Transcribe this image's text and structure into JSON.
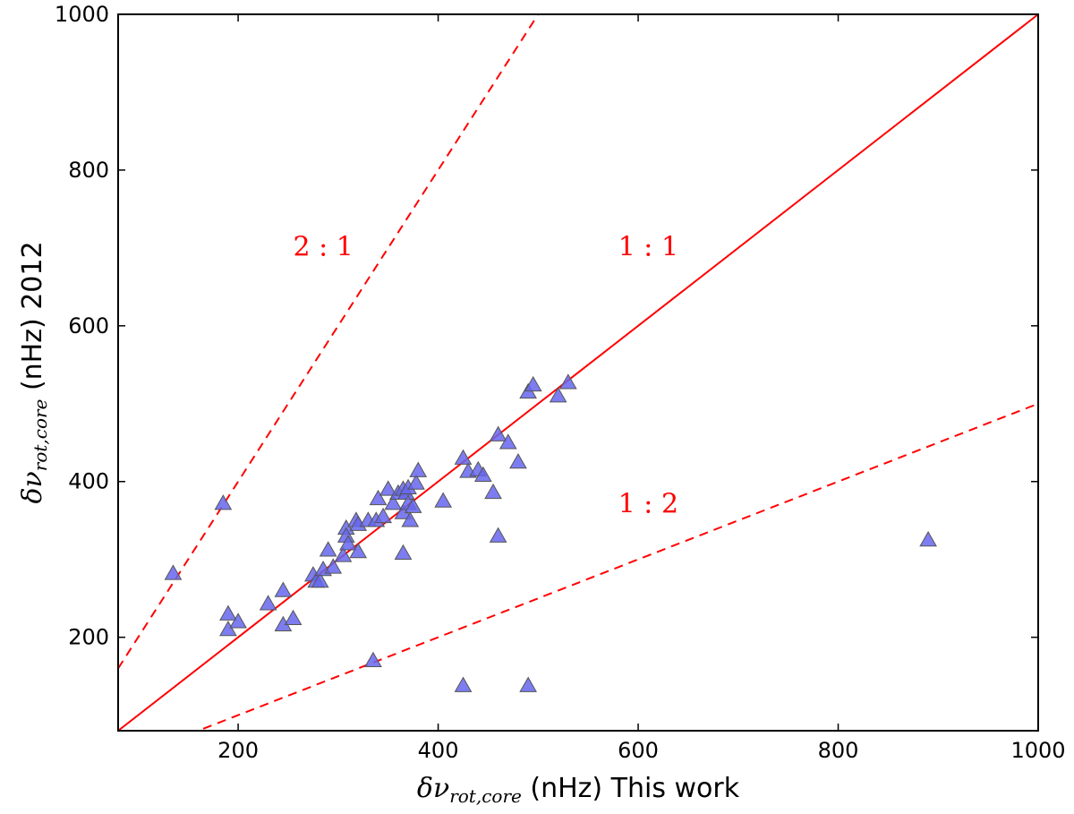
{
  "chart_data": {
    "type": "scatter",
    "xlabel": {
      "symbol": "δν",
      "subscript": "rot,core",
      "text": " (nHz) This work"
    },
    "ylabel": {
      "symbol": "δν",
      "subscript": "rot,core",
      "text": " (nHz) 2012"
    },
    "xlim": [
      80,
      1000
    ],
    "ylim": [
      80,
      1000
    ],
    "xticks": [
      200,
      400,
      600,
      800,
      1000
    ],
    "yticks": [
      200,
      400,
      600,
      800,
      1000
    ],
    "grid": false,
    "reference_lines": [
      {
        "label": "1 : 1",
        "slope": 1,
        "style": "solid",
        "color": "#ff0000",
        "label_at": [
          580,
          690
        ]
      },
      {
        "label": "2 : 1",
        "slope": 2,
        "style": "dashed",
        "color": "#ff0000",
        "label_at": [
          255,
          690
        ]
      },
      {
        "label": "1 : 2",
        "slope": 0.5,
        "style": "dashed",
        "color": "#ff0000",
        "label_at": [
          580,
          360
        ]
      }
    ],
    "marker": {
      "shape": "triangle-up",
      "fill": "#6666ee",
      "stroke": "#555555"
    },
    "points": [
      {
        "x": 135,
        "y": 282
      },
      {
        "x": 185,
        "y": 372
      },
      {
        "x": 190,
        "y": 230
      },
      {
        "x": 190,
        "y": 210
      },
      {
        "x": 200,
        "y": 220
      },
      {
        "x": 230,
        "y": 243
      },
      {
        "x": 245,
        "y": 260
      },
      {
        "x": 245,
        "y": 216
      },
      {
        "x": 255,
        "y": 224
      },
      {
        "x": 275,
        "y": 280
      },
      {
        "x": 278,
        "y": 272
      },
      {
        "x": 282,
        "y": 272
      },
      {
        "x": 285,
        "y": 287
      },
      {
        "x": 290,
        "y": 312
      },
      {
        "x": 295,
        "y": 290
      },
      {
        "x": 305,
        "y": 305
      },
      {
        "x": 308,
        "y": 340
      },
      {
        "x": 308,
        "y": 330
      },
      {
        "x": 310,
        "y": 320
      },
      {
        "x": 318,
        "y": 350
      },
      {
        "x": 320,
        "y": 345
      },
      {
        "x": 320,
        "y": 310
      },
      {
        "x": 330,
        "y": 350
      },
      {
        "x": 335,
        "y": 170
      },
      {
        "x": 338,
        "y": 350
      },
      {
        "x": 340,
        "y": 378
      },
      {
        "x": 345,
        "y": 355
      },
      {
        "x": 350,
        "y": 390
      },
      {
        "x": 355,
        "y": 372
      },
      {
        "x": 360,
        "y": 385
      },
      {
        "x": 365,
        "y": 390
      },
      {
        "x": 365,
        "y": 360
      },
      {
        "x": 365,
        "y": 308
      },
      {
        "x": 368,
        "y": 385
      },
      {
        "x": 370,
        "y": 392
      },
      {
        "x": 370,
        "y": 372
      },
      {
        "x": 372,
        "y": 350
      },
      {
        "x": 375,
        "y": 368
      },
      {
        "x": 378,
        "y": 398
      },
      {
        "x": 380,
        "y": 414
      },
      {
        "x": 405,
        "y": 375
      },
      {
        "x": 425,
        "y": 430
      },
      {
        "x": 425,
        "y": 138
      },
      {
        "x": 430,
        "y": 413
      },
      {
        "x": 440,
        "y": 415
      },
      {
        "x": 445,
        "y": 408
      },
      {
        "x": 455,
        "y": 386
      },
      {
        "x": 460,
        "y": 460
      },
      {
        "x": 460,
        "y": 330
      },
      {
        "x": 470,
        "y": 450
      },
      {
        "x": 480,
        "y": 425
      },
      {
        "x": 490,
        "y": 515
      },
      {
        "x": 490,
        "y": 138
      },
      {
        "x": 495,
        "y": 524
      },
      {
        "x": 520,
        "y": 510
      },
      {
        "x": 530,
        "y": 527
      },
      {
        "x": 890,
        "y": 325
      }
    ]
  }
}
